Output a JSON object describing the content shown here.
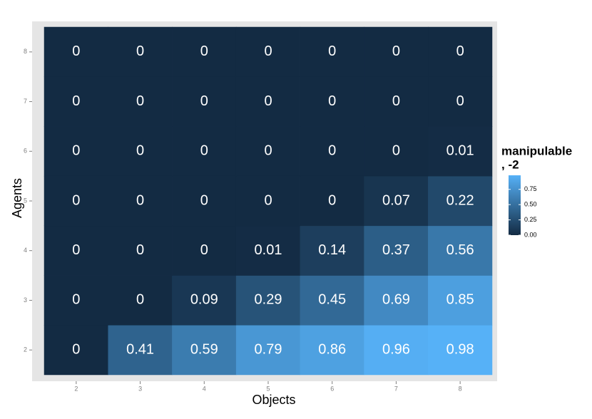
{
  "chart_data": {
    "type": "heatmap",
    "x_label": "Objects",
    "y_label": "Agents",
    "x": [
      2,
      3,
      4,
      5,
      6,
      7,
      8
    ],
    "y": [
      2,
      3,
      4,
      5,
      6,
      7,
      8
    ],
    "xlim": [
      1.5,
      8.5
    ],
    "ylim": [
      1.5,
      8.5
    ],
    "xticks": [
      2,
      3,
      4,
      5,
      6,
      7,
      8
    ],
    "yticks": [
      2,
      3,
      4,
      5,
      6,
      7,
      8
    ],
    "values": [
      [
        0,
        0.41,
        0.59,
        0.79,
        0.86,
        0.96,
        0.98
      ],
      [
        0,
        0,
        0.09,
        0.29,
        0.45,
        0.69,
        0.85
      ],
      [
        0,
        0,
        0,
        0.01,
        0.14,
        0.37,
        0.56
      ],
      [
        0,
        0,
        0,
        0,
        0,
        0.07,
        0.22
      ],
      [
        0,
        0,
        0,
        0,
        0,
        0,
        0.01
      ],
      [
        0,
        0,
        0,
        0,
        0,
        0,
        0
      ],
      [
        0,
        0,
        0,
        0,
        0,
        0,
        0
      ]
    ],
    "color_low": "#132b43",
    "color_high": "#56b1f7",
    "legend_title": [
      "manipulable",
      ", -2"
    ],
    "legend_ticks": [
      {
        "value": 0,
        "label": "0.00"
      },
      {
        "value": 0.25,
        "label": "0.25"
      },
      {
        "value": 0.5,
        "label": "0.50"
      },
      {
        "value": 0.75,
        "label": "0.75"
      }
    ]
  }
}
